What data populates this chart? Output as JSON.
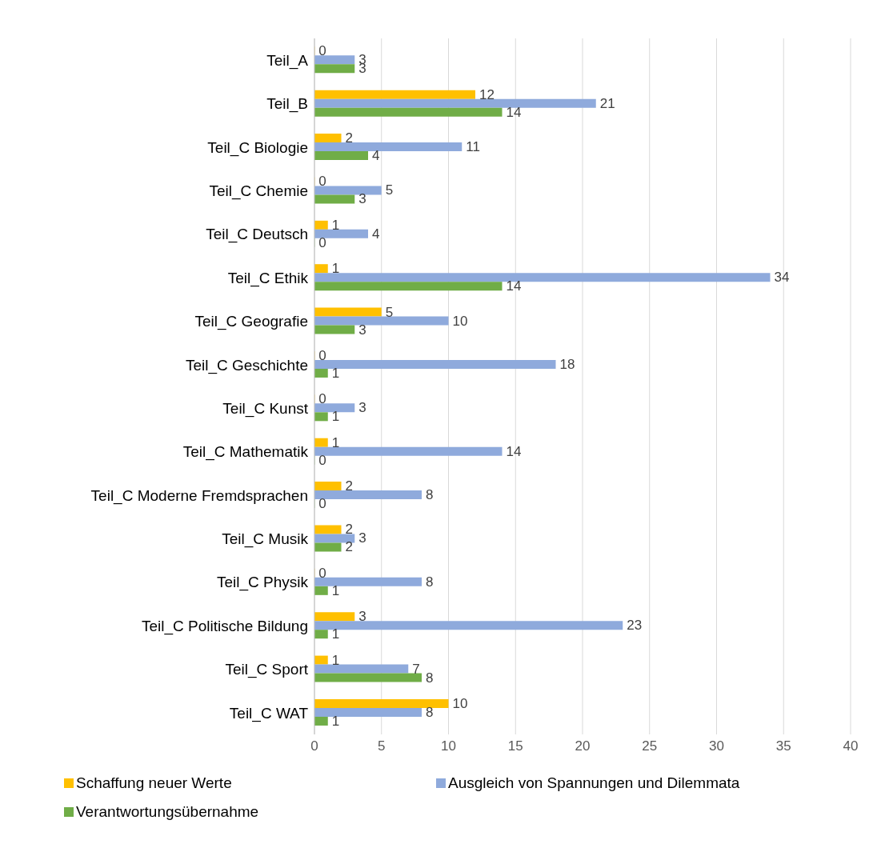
{
  "chart_data": {
    "type": "bar",
    "orientation": "horizontal",
    "categories": [
      "Teil_A",
      "Teil_B",
      "Teil_C Biologie",
      "Teil_C Chemie",
      "Teil_C Deutsch",
      "Teil_C Ethik",
      "Teil_C Geografie",
      "Teil_C Geschichte",
      "Teil_C Kunst",
      "Teil_C Mathematik",
      "Teil_C Moderne Fremdsprachen",
      "Teil_C Musik",
      "Teil_C Physik",
      "Teil_C Politische Bildung",
      "Teil_C Sport",
      "Teil_C WAT"
    ],
    "series": [
      {
        "name": "Schaffung neuer Werte",
        "color": "#ffc000",
        "values": [
          0,
          12,
          2,
          0,
          1,
          1,
          5,
          0,
          0,
          1,
          2,
          2,
          0,
          3,
          1,
          10
        ]
      },
      {
        "name": "Ausgleich von Spannungen und Dilemmata",
        "color": "#8faadc",
        "values": [
          3,
          21,
          11,
          5,
          4,
          34,
          10,
          18,
          3,
          14,
          8,
          3,
          8,
          23,
          7,
          8
        ]
      },
      {
        "name": "Verantwortungsübernahme",
        "color": "#70ad47",
        "values": [
          3,
          14,
          4,
          3,
          0,
          14,
          3,
          1,
          1,
          0,
          0,
          2,
          1,
          1,
          8,
          1
        ]
      }
    ],
    "xlim": [
      0,
      40
    ],
    "xticks": [
      0,
      5,
      10,
      15,
      20,
      25,
      30,
      35,
      40
    ],
    "grid": "x",
    "legend": "bottom",
    "data_labels": true
  }
}
